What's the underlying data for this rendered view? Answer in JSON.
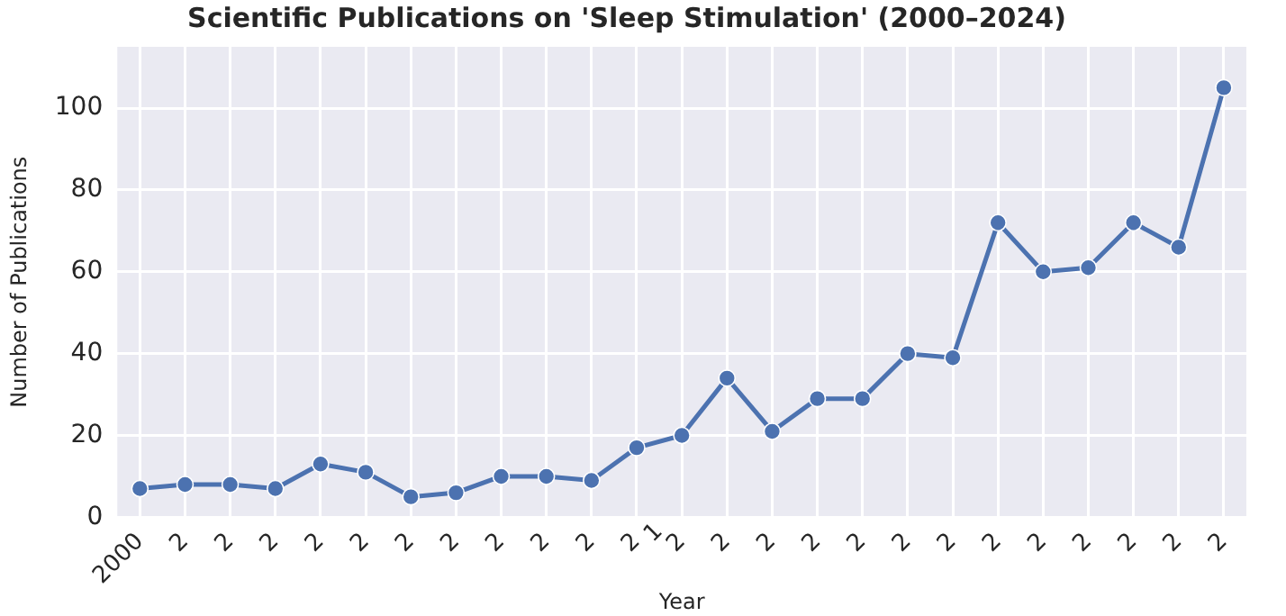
{
  "chart_data": {
    "type": "line",
    "title": "Scientific Publications on 'Sleep Stimulation' (2000–2024)",
    "xlabel": "Year",
    "ylabel": "Number of Publications",
    "categories": [
      "2000",
      "2",
      "2",
      "2",
      "2",
      "2",
      "2",
      "2",
      "2",
      "2",
      "2",
      "2",
      "2",
      "2",
      "2",
      "2",
      "2",
      "2",
      "2",
      "2",
      "2",
      "2",
      "2",
      "2",
      "2"
    ],
    "series": [
      {
        "color": "#4c72b0",
        "values": [
          7,
          8,
          8,
          7,
          13,
          11,
          5,
          6,
          10,
          10,
          9,
          17,
          20,
          34,
          21,
          29,
          29,
          40,
          39,
          72,
          60,
          61,
          72,
          66,
          105
        ]
      }
    ],
    "ylim": [
      0,
      115
    ],
    "yticks": [
      0,
      20,
      40,
      60,
      80,
      100
    ],
    "grid": true,
    "legend": false,
    "marker": "circle",
    "line_style": "solid",
    "annotations": [
      "1"
    ]
  }
}
